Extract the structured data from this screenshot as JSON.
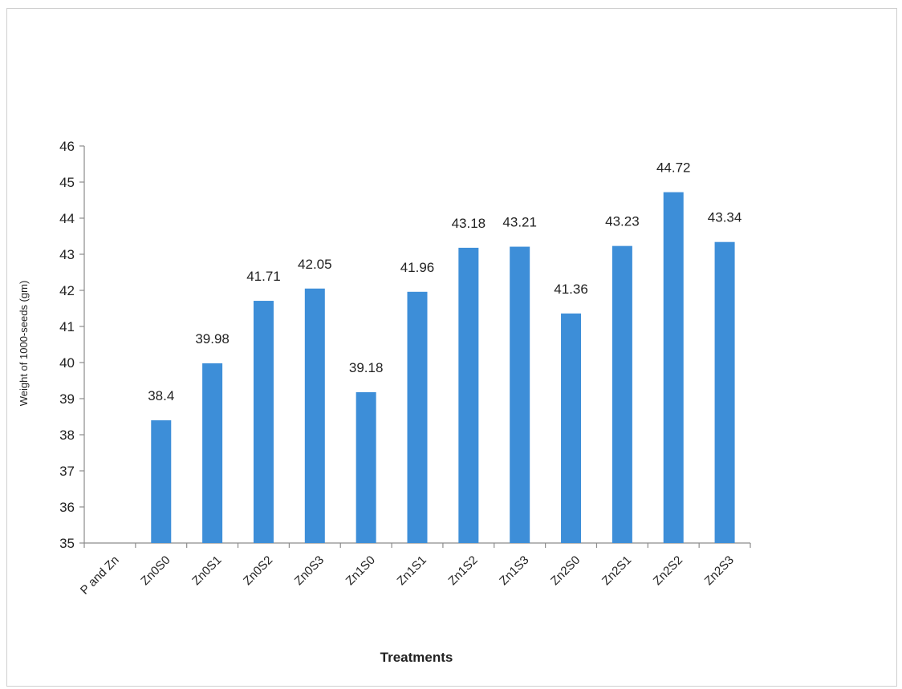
{
  "chart_data": {
    "type": "bar",
    "title": "",
    "xlabel": "Treatments",
    "ylabel": "Weight of 1000-seeds (gm)",
    "ylim": [
      35,
      46
    ],
    "yticks": [
      35,
      36,
      37,
      38,
      39,
      40,
      41,
      42,
      43,
      44,
      45,
      46
    ],
    "categories": [
      "P and Zn",
      "Zn0S0",
      "Zn0S1",
      "Zn0S2",
      "Zn0S3",
      "Zn1S0",
      "Zn1S1",
      "Zn1S2",
      "Zn1S3",
      "Zn2S0",
      "Zn2S1",
      "Zn2S2",
      "Zn2S3"
    ],
    "values": [
      null,
      38.4,
      39.98,
      41.71,
      42.05,
      39.18,
      41.96,
      43.18,
      43.21,
      41.36,
      43.23,
      44.72,
      43.34
    ],
    "data_labels": [
      "",
      "38.4",
      "39.98",
      "41.71",
      "42.05",
      "39.18",
      "41.96",
      "43.18",
      "43.21",
      "41.36",
      "43.23",
      "44.72",
      "43.34"
    ],
    "bar_color": "#3d8ed8",
    "grid": false,
    "legend": "none"
  }
}
